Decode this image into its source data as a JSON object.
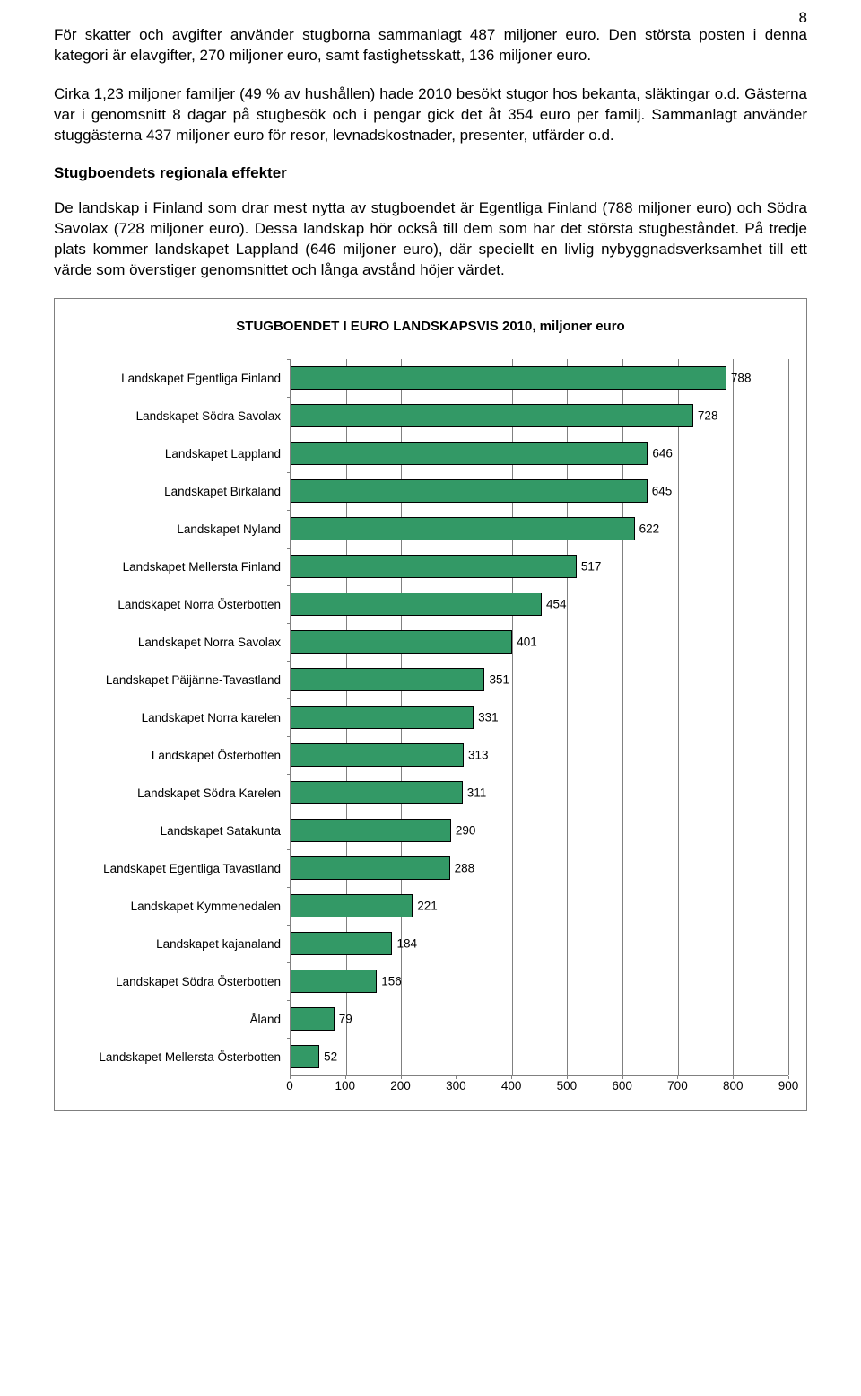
{
  "page_number": "8",
  "paragraphs": {
    "p1": "För skatter och avgifter använder stugborna sammanlagt 487 miljoner euro. Den största posten i denna kategori är elavgifter, 270 miljoner euro, samt fastighetsskatt, 136 miljoner euro.",
    "p2": "Cirka 1,23 miljoner familjer (49 % av hushållen) hade 2010 besökt stugor hos bekanta, släktingar o.d. Gästerna var i genomsnitt 8 dagar på stugbesök och i pengar gick det åt 354 euro per familj. Sammanlagt använder stuggästerna 437 miljoner euro för resor, levnadskostnader, presenter, utfärder o.d.",
    "p3": "De landskap i Finland som drar mest nytta av stugboendet är Egentliga Finland (788 miljoner euro) och Södra Savolax (728 miljoner euro). Dessa landskap hör också till dem som har det största stugbeståndet.  På tredje plats kommer landskapet Lappland (646 miljoner euro), där speciellt en livlig nybyggnadsverksamhet till ett värde som överstiger genomsnittet och långa avstånd höjer värdet."
  },
  "heading": "Stugboendets regionala effekter",
  "chart": {
    "type": "bar-horizontal",
    "title": "STUGBOENDET I EURO LANDSKAPSVIS 2010, miljoner euro",
    "bar_fill": "#339966",
    "bar_border": "#000000",
    "grid_color": "#808080",
    "background": "#ffffff",
    "xmax": 900,
    "xtick_step": 100,
    "xticks": [
      "0",
      "100",
      "200",
      "300",
      "400",
      "500",
      "600",
      "700",
      "800",
      "900"
    ],
    "label_fontsize": 13.5,
    "title_fontsize": 15,
    "rows": [
      {
        "label": "Landskapet Egentliga Finland",
        "value": 788
      },
      {
        "label": "Landskapet Södra Savolax",
        "value": 728
      },
      {
        "label": "Landskapet Lappland",
        "value": 646
      },
      {
        "label": "Landskapet Birkaland",
        "value": 645
      },
      {
        "label": "Landskapet Nyland",
        "value": 622
      },
      {
        "label": "Landskapet Mellersta Finland",
        "value": 517
      },
      {
        "label": "Landskapet Norra Österbotten",
        "value": 454
      },
      {
        "label": "Landskapet Norra Savolax",
        "value": 401
      },
      {
        "label": "Landskapet Päijänne-Tavastland",
        "value": 351
      },
      {
        "label": "Landskapet Norra karelen",
        "value": 331
      },
      {
        "label": "Landskapet Österbotten",
        "value": 313
      },
      {
        "label": "Landskapet Södra Karelen",
        "value": 311
      },
      {
        "label": "Landskapet Satakunta",
        "value": 290
      },
      {
        "label": "Landskapet Egentliga Tavastland",
        "value": 288
      },
      {
        "label": "Landskapet Kymmenedalen",
        "value": 221
      },
      {
        "label": "Landskapet kajanaland",
        "value": 184
      },
      {
        "label": "Landskapet Södra Österbotten",
        "value": 156
      },
      {
        "label": "Åland",
        "value": 79
      },
      {
        "label": "Landskapet Mellersta Österbotten",
        "value": 52
      }
    ]
  }
}
